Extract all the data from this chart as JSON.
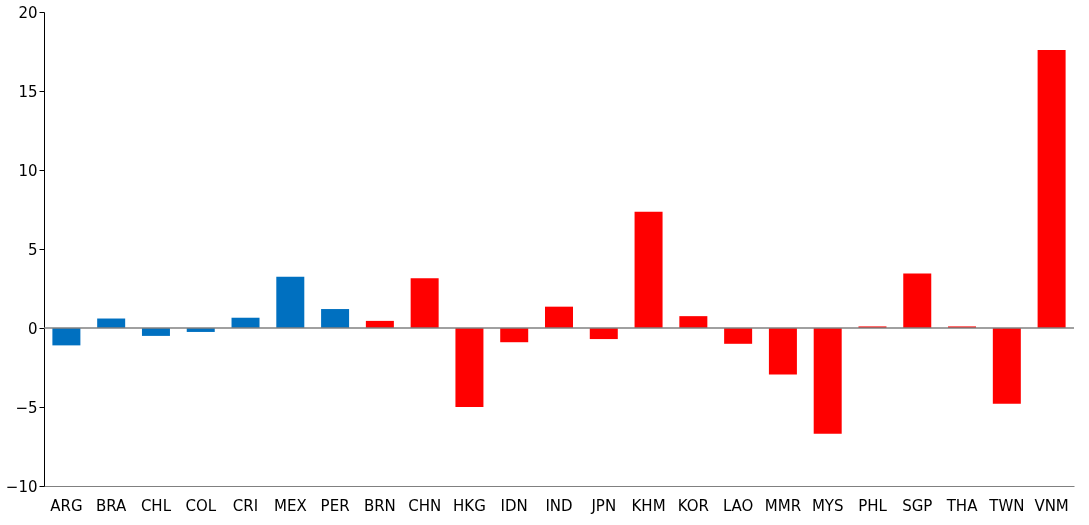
{
  "chart_data": {
    "type": "bar",
    "categories": [
      "ARG",
      "BRA",
      "CHL",
      "COL",
      "CRI",
      "MEX",
      "PER",
      "BRN",
      "CHN",
      "HKG",
      "IDN",
      "IND",
      "JPN",
      "KHM",
      "KOR",
      "LAO",
      "MMR",
      "MYS",
      "PHL",
      "SGP",
      "THA",
      "TWN",
      "VNM"
    ],
    "values": [
      -1.1,
      0.6,
      -0.5,
      -0.25,
      0.65,
      3.25,
      1.2,
      0.45,
      3.15,
      -5.0,
      -0.9,
      1.35,
      -0.7,
      7.35,
      0.75,
      -1.0,
      -2.95,
      -6.7,
      0.1,
      3.45,
      0.1,
      -4.8,
      17.6
    ],
    "colors": [
      "#0070c0",
      "#0070c0",
      "#0070c0",
      "#0070c0",
      "#0070c0",
      "#0070c0",
      "#0070c0",
      "#ff0000",
      "#ff0000",
      "#ff0000",
      "#ff0000",
      "#ff0000",
      "#ff0000",
      "#ff0000",
      "#ff0000",
      "#ff0000",
      "#ff0000",
      "#ff0000",
      "#ff0000",
      "#ff0000",
      "#ff0000",
      "#ff0000",
      "#ff0000"
    ],
    "ylim": [
      -10,
      20
    ],
    "yticks": [
      -10,
      -5,
      0,
      5,
      10,
      15,
      20
    ],
    "ref_lines": [
      {
        "axis": "y",
        "value": 0,
        "color": "#808080"
      }
    ],
    "grid": false
  }
}
